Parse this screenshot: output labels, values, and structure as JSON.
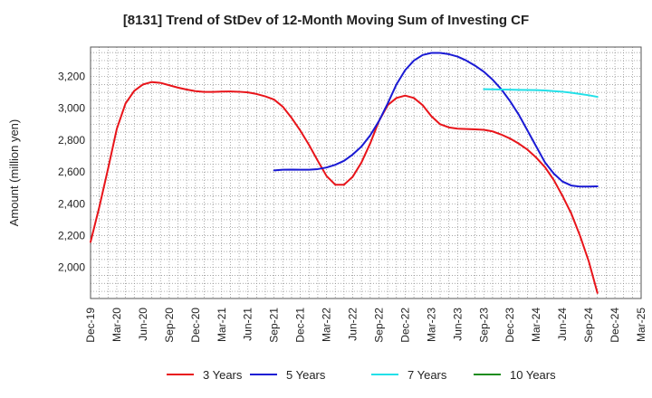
{
  "chart_data": {
    "type": "line",
    "title": "[8131]  Trend of StDev of 12-Month Moving Sum of Investing CF",
    "xlabel": "",
    "ylabel": "Amount (million yen)",
    "x_ticks": [
      "Dec-19",
      "Mar-20",
      "Jun-20",
      "Sep-20",
      "Dec-20",
      "Mar-21",
      "Jun-21",
      "Sep-21",
      "Dec-21",
      "Mar-22",
      "Jun-22",
      "Sep-22",
      "Dec-22",
      "Mar-23",
      "Jun-23",
      "Sep-23",
      "Dec-23",
      "Mar-24",
      "Jun-24",
      "Sep-24",
      "Dec-24",
      "Mar-25"
    ],
    "y_ticks": [
      2000,
      2200,
      2400,
      2600,
      2800,
      3000,
      3200
    ],
    "ylim": [
      1805,
      3385
    ],
    "grid": true,
    "legend_position": "bottom",
    "series": [
      {
        "name": "3 Years",
        "color": "#e8141a",
        "values": [
          [
            0,
            2160
          ],
          [
            1,
            2380
          ],
          [
            2,
            2620
          ],
          [
            3,
            2870
          ],
          [
            4,
            3030
          ],
          [
            5,
            3110
          ],
          [
            6,
            3150
          ],
          [
            7,
            3165
          ],
          [
            8,
            3160
          ],
          [
            9,
            3145
          ],
          [
            10,
            3130
          ],
          [
            11,
            3118
          ],
          [
            12,
            3108
          ],
          [
            13,
            3103
          ],
          [
            14,
            3103
          ],
          [
            15,
            3105
          ],
          [
            16,
            3106
          ],
          [
            17,
            3104
          ],
          [
            18,
            3100
          ],
          [
            19,
            3090
          ],
          [
            20,
            3075
          ],
          [
            21,
            3055
          ],
          [
            22,
            3010
          ],
          [
            23,
            2940
          ],
          [
            24,
            2860
          ],
          [
            25,
            2770
          ],
          [
            26,
            2670
          ],
          [
            27,
            2575
          ],
          [
            28,
            2520
          ],
          [
            29,
            2520
          ],
          [
            30,
            2570
          ],
          [
            31,
            2660
          ],
          [
            32,
            2780
          ],
          [
            33,
            2920
          ],
          [
            34,
            3020
          ],
          [
            35,
            3065
          ],
          [
            36,
            3080
          ],
          [
            37,
            3065
          ],
          [
            38,
            3020
          ],
          [
            39,
            2950
          ],
          [
            40,
            2900
          ],
          [
            41,
            2880
          ],
          [
            42,
            2872
          ],
          [
            43,
            2870
          ],
          [
            44,
            2868
          ],
          [
            45,
            2865
          ],
          [
            46,
            2855
          ],
          [
            47,
            2835
          ],
          [
            48,
            2810
          ],
          [
            49,
            2778
          ],
          [
            50,
            2740
          ],
          [
            51,
            2690
          ],
          [
            52,
            2630
          ],
          [
            53,
            2550
          ],
          [
            54,
            2450
          ],
          [
            55,
            2340
          ],
          [
            56,
            2200
          ],
          [
            57,
            2040
          ],
          [
            58,
            1840
          ]
        ]
      },
      {
        "name": "5 Years",
        "color": "#1a1ad4",
        "values": [
          [
            21,
            2610
          ],
          [
            22,
            2614
          ],
          [
            23,
            2615
          ],
          [
            24,
            2614
          ],
          [
            25,
            2614
          ],
          [
            26,
            2618
          ],
          [
            27,
            2628
          ],
          [
            28,
            2645
          ],
          [
            29,
            2670
          ],
          [
            30,
            2710
          ],
          [
            31,
            2760
          ],
          [
            32,
            2830
          ],
          [
            33,
            2920
          ],
          [
            34,
            3030
          ],
          [
            35,
            3150
          ],
          [
            36,
            3240
          ],
          [
            37,
            3300
          ],
          [
            38,
            3335
          ],
          [
            39,
            3348
          ],
          [
            40,
            3348
          ],
          [
            41,
            3340
          ],
          [
            42,
            3325
          ],
          [
            43,
            3300
          ],
          [
            44,
            3268
          ],
          [
            45,
            3230
          ],
          [
            46,
            3180
          ],
          [
            47,
            3120
          ],
          [
            48,
            3045
          ],
          [
            49,
            2960
          ],
          [
            50,
            2860
          ],
          [
            51,
            2760
          ],
          [
            52,
            2660
          ],
          [
            53,
            2590
          ],
          [
            54,
            2540
          ],
          [
            55,
            2515
          ],
          [
            56,
            2508
          ],
          [
            57,
            2508
          ],
          [
            58,
            2510
          ]
        ]
      },
      {
        "name": "7 Years",
        "color": "#22e0e8",
        "values": [
          [
            45,
            3120
          ],
          [
            46,
            3119
          ],
          [
            47,
            3118
          ],
          [
            48,
            3117
          ],
          [
            49,
            3116
          ],
          [
            50,
            3115
          ],
          [
            51,
            3114
          ],
          [
            52,
            3112
          ],
          [
            53,
            3108
          ],
          [
            54,
            3104
          ],
          [
            55,
            3098
          ],
          [
            56,
            3090
          ],
          [
            57,
            3082
          ],
          [
            58,
            3072
          ]
        ]
      },
      {
        "name": "10 Years",
        "color": "#1e8c1e",
        "values": []
      }
    ]
  }
}
